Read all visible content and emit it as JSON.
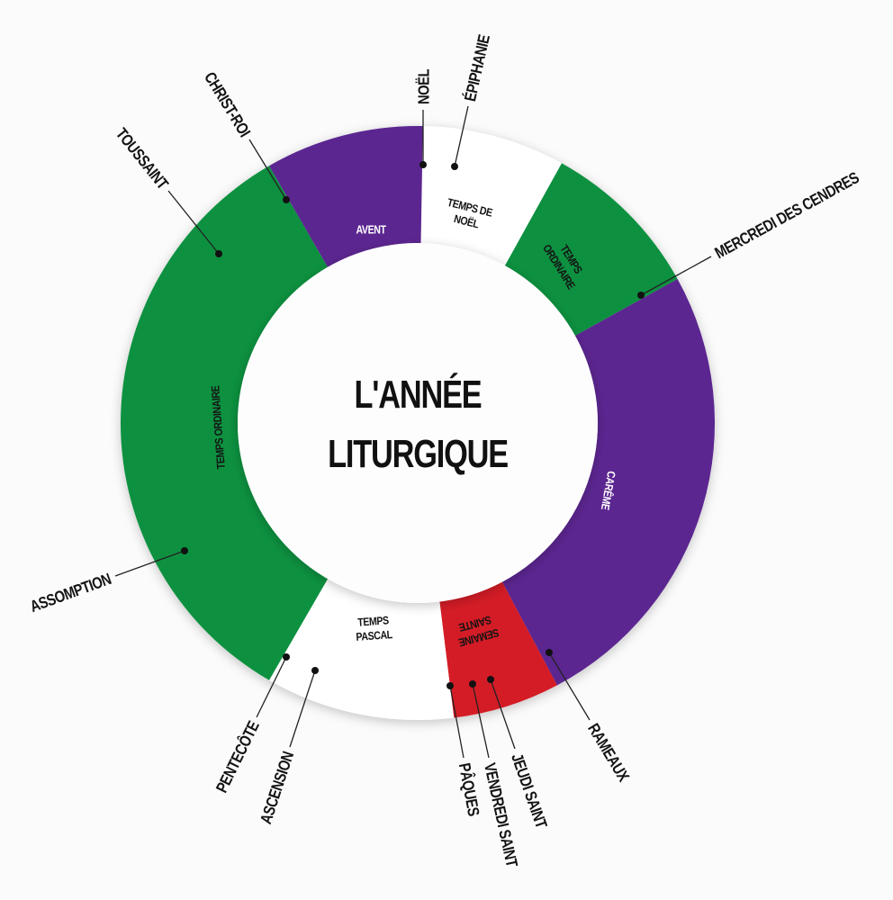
{
  "title": {
    "line1": "L'ANNÉE",
    "line2": "LITURGIQUE"
  },
  "colors": {
    "green": "#11913f",
    "purple": "#5b2591",
    "red": "#d41f26",
    "white": "#ffffff",
    "ink": "#141414"
  },
  "segments": [
    {
      "lines": [
        "TEMPS DE",
        "NOËL"
      ],
      "color": "white",
      "text_color": "ink"
    },
    {
      "lines": [
        "TEMPS",
        "ORDINAIRE"
      ],
      "color": "green",
      "text_color": "ink"
    },
    {
      "lines": [
        "CARÊME"
      ],
      "color": "purple",
      "text_color": "white"
    },
    {
      "lines": [
        "SEMAINE",
        "SAINTE"
      ],
      "color": "red",
      "text_color": "ink"
    },
    {
      "lines": [
        "TEMPS",
        "PASCAL"
      ],
      "color": "white",
      "text_color": "ink"
    },
    {
      "lines": [
        "TEMPS ORDINAIRE"
      ],
      "color": "green",
      "text_color": "ink"
    },
    {
      "lines": [
        "AVENT"
      ],
      "color": "purple",
      "text_color": "white"
    }
  ],
  "feasts": [
    {
      "label": "NOËL"
    },
    {
      "label": "ÉPIPHANIE"
    },
    {
      "label": "MERCREDI DES CENDRES"
    },
    {
      "label": "RAMEAUX"
    },
    {
      "label": "JEUDI SAINT"
    },
    {
      "label": "VENDREDI SAINT"
    },
    {
      "label": "PÂQUES"
    },
    {
      "label": "ASCENSION"
    },
    {
      "label": "PENTECÔTE"
    },
    {
      "label": "ASSOMPTION"
    },
    {
      "label": "TOUSSAINT"
    },
    {
      "label": "CHRIST-ROI"
    }
  ]
}
